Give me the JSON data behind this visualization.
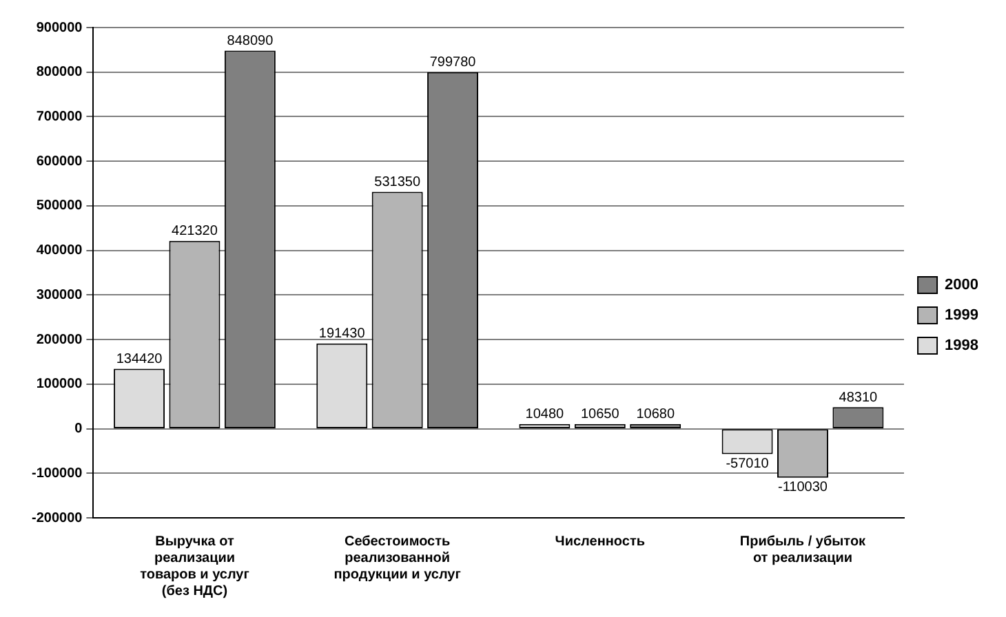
{
  "chart_data": {
    "type": "bar",
    "categories": [
      "Выручка от реализации товаров и услуг (без НДС)",
      "Себестоимость реализованной продукции и услуг",
      "Численность",
      "Прибыль / убыток от реализации"
    ],
    "series": [
      {
        "name": "1998",
        "color": "#dcdcdc",
        "values": [
          134420,
          191430,
          10480,
          -57010
        ]
      },
      {
        "name": "1999",
        "color": "#b4b4b4",
        "values": [
          421320,
          531350,
          10650,
          -110030
        ]
      },
      {
        "name": "2000",
        "color": "#808080",
        "values": [
          848090,
          799780,
          10680,
          48310
        ]
      }
    ],
    "ylim": [
      -200000,
      900000
    ],
    "yticks": [
      -200000,
      -100000,
      0,
      100000,
      200000,
      300000,
      400000,
      500000,
      600000,
      700000,
      800000,
      900000
    ],
    "grid": "y",
    "legend": "right",
    "data_labels": true
  }
}
